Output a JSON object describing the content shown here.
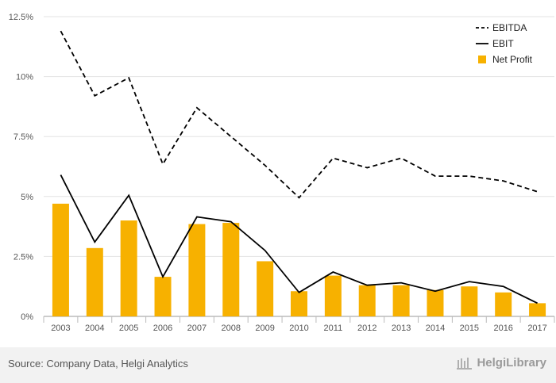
{
  "chart_data": {
    "type": "bar",
    "categories": [
      "2003",
      "2004",
      "2005",
      "2006",
      "2007",
      "2008",
      "2009",
      "2010",
      "2011",
      "2012",
      "2013",
      "2014",
      "2015",
      "2016",
      "2017"
    ],
    "series": [
      {
        "name": "EBITDA",
        "type": "line",
        "style": "dashed",
        "color": "#000000",
        "values": [
          11.9,
          9.2,
          9.95,
          6.35,
          8.7,
          7.5,
          6.3,
          4.95,
          6.6,
          6.2,
          6.6,
          5.85,
          5.85,
          5.65,
          5.2
        ]
      },
      {
        "name": "EBIT",
        "type": "line",
        "style": "solid",
        "color": "#000000",
        "values": [
          5.9,
          3.1,
          5.05,
          1.65,
          4.15,
          3.95,
          2.75,
          1.0,
          1.85,
          1.3,
          1.4,
          1.05,
          1.45,
          1.25,
          0.55
        ]
      },
      {
        "name": "Net Profit",
        "type": "bar",
        "color": "#f7b100",
        "values": [
          4.7,
          2.85,
          4.0,
          1.65,
          3.85,
          3.9,
          2.3,
          1.05,
          1.7,
          1.3,
          1.3,
          1.1,
          1.25,
          1.0,
          0.55
        ]
      }
    ],
    "ylim": [
      0,
      12.5
    ],
    "yticks": [
      0,
      2.5,
      5,
      7.5,
      10,
      12.5
    ],
    "ytick_labels": [
      "0%",
      "2.5%",
      "5%",
      "7.5%",
      "10%",
      "12.5%"
    ],
    "grid": true,
    "legend_position": "top-right",
    "xlabel": "",
    "ylabel": ""
  },
  "footer": {
    "source": "Source: Company Data, Helgi Analytics",
    "brand": "HelgiLibrary"
  }
}
